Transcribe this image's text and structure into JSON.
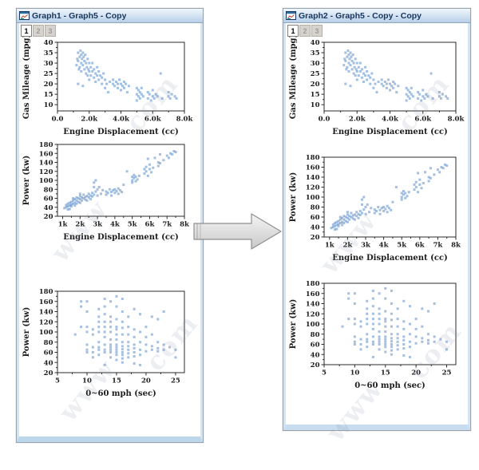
{
  "windows": [
    {
      "title": "Graph1 - Graph5 - Copy",
      "tabs": [
        {
          "label": "1",
          "active": true
        },
        {
          "label": "2",
          "active": false
        },
        {
          "label": "3",
          "active": false
        }
      ]
    },
    {
      "title": "Graph2 - Graph5 - Copy - Copy",
      "tabs": [
        {
          "label": "1",
          "active": true
        },
        {
          "label": "2",
          "active": false
        },
        {
          "label": "3",
          "active": false
        }
      ]
    }
  ],
  "watermark": [
    "www",
    "com"
  ],
  "colors": {
    "point": "#4a7fc1",
    "axis": "#2b2b2b",
    "titlebar_text": "#16365c",
    "titlebar_top": "#f0f6fc",
    "titlebar_bottom": "#b7cfe8",
    "frame_blue": "#d3e4f3",
    "arrow_fill": "#dcdcdc",
    "arrow_stroke": "#8f8f8f"
  },
  "chart_data": [
    {
      "type": "scatter",
      "xlabel": "Engine Displacement (cc)",
      "ylabel": "Gas Mileage (mpg)",
      "xlim": [
        0,
        8000
      ],
      "ylim": [
        7,
        40
      ],
      "xticks": {
        "values": [
          0,
          2000,
          4000,
          6000,
          8000
        ],
        "labels": [
          "0.0",
          "2.0k",
          "4.0k",
          "6.0k",
          "8.0k"
        ]
      },
      "yticks": {
        "values": [
          10,
          15,
          20,
          25,
          30,
          35,
          40
        ],
        "labels": [
          "10",
          "15",
          "20",
          "25",
          "30",
          "35",
          "40"
        ]
      },
      "grid": false,
      "points": [
        [
          1200,
          29
        ],
        [
          1250,
          32
        ],
        [
          1300,
          35
        ],
        [
          1300,
          31
        ],
        [
          1300,
          20
        ],
        [
          1350,
          27
        ],
        [
          1400,
          33
        ],
        [
          1400,
          28
        ],
        [
          1450,
          36
        ],
        [
          1500,
          34
        ],
        [
          1500,
          30
        ],
        [
          1500,
          26
        ],
        [
          1550,
          32
        ],
        [
          1600,
          35
        ],
        [
          1600,
          29
        ],
        [
          1600,
          19
        ],
        [
          1650,
          33
        ],
        [
          1700,
          31
        ],
        [
          1700,
          27
        ],
        [
          1750,
          34
        ],
        [
          1800,
          30
        ],
        [
          1800,
          25
        ],
        [
          1850,
          28
        ],
        [
          1900,
          32
        ],
        [
          1900,
          24
        ],
        [
          1950,
          27
        ],
        [
          2000,
          30
        ],
        [
          2000,
          26
        ],
        [
          2000,
          22
        ],
        [
          2100,
          28
        ],
        [
          2100,
          24
        ],
        [
          2200,
          30
        ],
        [
          2200,
          26
        ],
        [
          2300,
          27
        ],
        [
          2300,
          23
        ],
        [
          2400,
          25
        ],
        [
          2400,
          21
        ],
        [
          2500,
          28
        ],
        [
          2500,
          24
        ],
        [
          2600,
          26
        ],
        [
          2600,
          22
        ],
        [
          2700,
          24
        ],
        [
          2800,
          23
        ],
        [
          2800,
          20
        ],
        [
          2900,
          25
        ],
        [
          3000,
          22
        ],
        [
          3000,
          18
        ],
        [
          3100,
          20
        ],
        [
          3200,
          16
        ],
        [
          3300,
          21
        ],
        [
          3500,
          22
        ],
        [
          3500,
          20
        ],
        [
          3600,
          19
        ],
        [
          3700,
          21
        ],
        [
          3800,
          20
        ],
        [
          3800,
          18
        ],
        [
          3900,
          22
        ],
        [
          4000,
          20
        ],
        [
          4000,
          17
        ],
        [
          4100,
          19
        ],
        [
          4200,
          21
        ],
        [
          4200,
          18
        ],
        [
          4300,
          20
        ],
        [
          4400,
          16
        ],
        [
          4500,
          19
        ],
        [
          5000,
          18
        ],
        [
          5000,
          15
        ],
        [
          5000,
          12
        ],
        [
          5100,
          17
        ],
        [
          5100,
          14
        ],
        [
          5200,
          16
        ],
        [
          5200,
          13
        ],
        [
          5300,
          18
        ],
        [
          5300,
          15
        ],
        [
          5400,
          14
        ],
        [
          5700,
          16
        ],
        [
          5700,
          13
        ],
        [
          5800,
          15
        ],
        [
          5900,
          12
        ],
        [
          6000,
          17
        ],
        [
          6000,
          14
        ],
        [
          6100,
          13
        ],
        [
          6200,
          15
        ],
        [
          6300,
          14
        ],
        [
          6500,
          25
        ],
        [
          6600,
          13
        ],
        [
          7000,
          16
        ],
        [
          7000,
          14
        ],
        [
          7100,
          13
        ],
        [
          7200,
          15
        ],
        [
          7400,
          14
        ],
        [
          7500,
          13
        ]
      ]
    },
    {
      "type": "scatter",
      "xlabel": "Engine Displacement (cc)",
      "ylabel": "Power (kw)",
      "xlim": [
        700,
        8000
      ],
      "ylim": [
        20,
        180
      ],
      "xticks": {
        "values": [
          1000,
          2000,
          3000,
          4000,
          5000,
          6000,
          7000,
          8000
        ],
        "labels": [
          "1k",
          "2k",
          "3k",
          "4k",
          "5k",
          "6k",
          "7k",
          "8k"
        ]
      },
      "yticks": {
        "values": [
          20,
          40,
          60,
          80,
          100,
          120,
          140,
          160,
          180
        ],
        "labels": [
          "20",
          "40",
          "60",
          "80",
          "100",
          "120",
          "140",
          "160",
          "180"
        ]
      },
      "grid": false,
      "points": [
        [
          1100,
          38
        ],
        [
          1200,
          45
        ],
        [
          1200,
          40
        ],
        [
          1300,
          48
        ],
        [
          1300,
          42
        ],
        [
          1300,
          35
        ],
        [
          1400,
          50
        ],
        [
          1400,
          44
        ],
        [
          1400,
          36
        ],
        [
          1500,
          52
        ],
        [
          1500,
          46
        ],
        [
          1500,
          42
        ],
        [
          1600,
          60
        ],
        [
          1600,
          55
        ],
        [
          1600,
          48
        ],
        [
          1700,
          58
        ],
        [
          1700,
          50
        ],
        [
          1700,
          44
        ],
        [
          1800,
          62
        ],
        [
          1800,
          55
        ],
        [
          1800,
          48
        ],
        [
          1900,
          60
        ],
        [
          1900,
          52
        ],
        [
          2000,
          70
        ],
        [
          2000,
          65
        ],
        [
          2000,
          58
        ],
        [
          2000,
          50
        ],
        [
          2100,
          62
        ],
        [
          2100,
          55
        ],
        [
          2200,
          68
        ],
        [
          2200,
          60
        ],
        [
          2300,
          63
        ],
        [
          2300,
          57
        ],
        [
          2400,
          65
        ],
        [
          2400,
          55
        ],
        [
          2500,
          70
        ],
        [
          2500,
          62
        ],
        [
          2600,
          66
        ],
        [
          2600,
          58
        ],
        [
          2700,
          72
        ],
        [
          2700,
          64
        ],
        [
          2800,
          85
        ],
        [
          2800,
          68
        ],
        [
          2800,
          95
        ],
        [
          2900,
          100
        ],
        [
          2900,
          75
        ],
        [
          3000,
          80
        ],
        [
          3000,
          66
        ],
        [
          3100,
          85
        ],
        [
          3200,
          70
        ],
        [
          3300,
          78
        ],
        [
          3500,
          75
        ],
        [
          3500,
          68
        ],
        [
          3600,
          72
        ],
        [
          3700,
          80
        ],
        [
          3800,
          74
        ],
        [
          3800,
          66
        ],
        [
          3900,
          78
        ],
        [
          4000,
          80
        ],
        [
          4000,
          72
        ],
        [
          4100,
          76
        ],
        [
          4200,
          82
        ],
        [
          4200,
          70
        ],
        [
          4300,
          78
        ],
        [
          4400,
          74
        ],
        [
          4500,
          90
        ],
        [
          4700,
          120
        ],
        [
          5000,
          108
        ],
        [
          5000,
          100
        ],
        [
          5000,
          95
        ],
        [
          5100,
          112
        ],
        [
          5100,
          105
        ],
        [
          5200,
          108
        ],
        [
          5200,
          98
        ],
        [
          5300,
          102
        ],
        [
          5400,
          110
        ],
        [
          5700,
          125
        ],
        [
          5700,
          115
        ],
        [
          5800,
          130
        ],
        [
          5800,
          120
        ],
        [
          5900,
          148
        ],
        [
          5900,
          110
        ],
        [
          6000,
          135
        ],
        [
          6000,
          125
        ],
        [
          6100,
          118
        ],
        [
          6200,
          128
        ],
        [
          6300,
          150
        ],
        [
          6500,
          140
        ],
        [
          6500,
          132
        ],
        [
          6600,
          158
        ],
        [
          6600,
          138
        ],
        [
          6800,
          145
        ],
        [
          7000,
          155
        ],
        [
          7100,
          150
        ],
        [
          7200,
          160
        ],
        [
          7300,
          158
        ],
        [
          7400,
          165
        ],
        [
          7500,
          163
        ]
      ]
    },
    {
      "type": "scatter",
      "xlabel": "0~60 mph (sec)",
      "ylabel": "Power (kw)",
      "xlim": [
        5,
        26.5
      ],
      "ylim": [
        20,
        180
      ],
      "xticks": {
        "values": [
          5,
          10,
          15,
          20,
          25
        ],
        "labels": [
          "5",
          "10",
          "15",
          "20",
          "25"
        ]
      },
      "yticks": {
        "values": [
          20,
          40,
          60,
          80,
          100,
          120,
          140,
          160,
          180
        ],
        "labels": [
          "20",
          "40",
          "60",
          "80",
          "100",
          "120",
          "140",
          "160",
          "180"
        ]
      },
      "grid": false,
      "points": [
        [
          8,
          95
        ],
        [
          9,
          150
        ],
        [
          9,
          160
        ],
        [
          9,
          110
        ],
        [
          10,
          100
        ],
        [
          10,
          110
        ],
        [
          10,
          140
        ],
        [
          10,
          160
        ],
        [
          10,
          60
        ],
        [
          10,
          65
        ],
        [
          10,
          75
        ],
        [
          11,
          95
        ],
        [
          11,
          105
        ],
        [
          11,
          70
        ],
        [
          11,
          60
        ],
        [
          11,
          50
        ],
        [
          12,
          120
        ],
        [
          12,
          130
        ],
        [
          12,
          145
        ],
        [
          12,
          110
        ],
        [
          12,
          100
        ],
        [
          12,
          80
        ],
        [
          12,
          70
        ],
        [
          12,
          65
        ],
        [
          12,
          55
        ],
        [
          13,
          165
        ],
        [
          13,
          150
        ],
        [
          13,
          135
        ],
        [
          13,
          120
        ],
        [
          13,
          110
        ],
        [
          13,
          100
        ],
        [
          13,
          90
        ],
        [
          13,
          75
        ],
        [
          13,
          65
        ],
        [
          13,
          60
        ],
        [
          13,
          35
        ],
        [
          14,
          160
        ],
        [
          14,
          130
        ],
        [
          14,
          120
        ],
        [
          14,
          110
        ],
        [
          14,
          100
        ],
        [
          14,
          85
        ],
        [
          14,
          75
        ],
        [
          14,
          70
        ],
        [
          14,
          65
        ],
        [
          14,
          60
        ],
        [
          14,
          50
        ],
        [
          15,
          170
        ],
        [
          15,
          150
        ],
        [
          15,
          125
        ],
        [
          15,
          110
        ],
        [
          15,
          105
        ],
        [
          15,
          95
        ],
        [
          15,
          85
        ],
        [
          15,
          75
        ],
        [
          15,
          70
        ],
        [
          15,
          65
        ],
        [
          15,
          60
        ],
        [
          15,
          55
        ],
        [
          15,
          45
        ],
        [
          16,
          165
        ],
        [
          16,
          140
        ],
        [
          16,
          120
        ],
        [
          16,
          108
        ],
        [
          16,
          95
        ],
        [
          16,
          80
        ],
        [
          16,
          72
        ],
        [
          16,
          66
        ],
        [
          16,
          60
        ],
        [
          16,
          55
        ],
        [
          16,
          48
        ],
        [
          16,
          40
        ],
        [
          17,
          130
        ],
        [
          17,
          110
        ],
        [
          17,
          95
        ],
        [
          17,
          80
        ],
        [
          17,
          72
        ],
        [
          17,
          65
        ],
        [
          17,
          58
        ],
        [
          17,
          50
        ],
        [
          18,
          145
        ],
        [
          18,
          105
        ],
        [
          18,
          90
        ],
        [
          18,
          75
        ],
        [
          18,
          68
        ],
        [
          18,
          60
        ],
        [
          18,
          52
        ],
        [
          18,
          38
        ],
        [
          19,
          135
        ],
        [
          19,
          100
        ],
        [
          19,
          80
        ],
        [
          19,
          65
        ],
        [
          19,
          55
        ],
        [
          19,
          35
        ],
        [
          20,
          110
        ],
        [
          20,
          90
        ],
        [
          20,
          75
        ],
        [
          20,
          62
        ],
        [
          21,
          130
        ],
        [
          21,
          95
        ],
        [
          21,
          72
        ],
        [
          21,
          65
        ],
        [
          22,
          125
        ],
        [
          22,
          80
        ],
        [
          22,
          68
        ],
        [
          22,
          62
        ],
        [
          23,
          140
        ],
        [
          23,
          75
        ],
        [
          23,
          65
        ],
        [
          24,
          70
        ],
        [
          25,
          65
        ],
        [
          25,
          50
        ]
      ]
    }
  ]
}
